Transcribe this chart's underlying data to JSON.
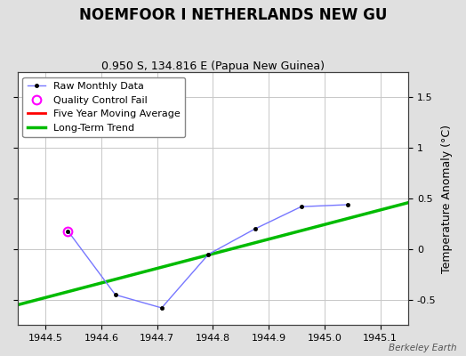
{
  "title": "NOEMFOOR I NETHERLANDS NEW GU",
  "subtitle": "0.950 S, 134.816 E (Papua New Guinea)",
  "ylabel": "Temperature Anomaly (°C)",
  "watermark": "Berkeley Earth",
  "xlim": [
    1944.45,
    1945.15
  ],
  "ylim": [
    -0.75,
    1.75
  ],
  "xticks": [
    1944.5,
    1944.6,
    1944.7,
    1944.8,
    1944.9,
    1945.0,
    1945.1
  ],
  "yticks": [
    -0.5,
    0.0,
    0.5,
    1.0,
    1.5
  ],
  "raw_x": [
    1944.54,
    1944.625,
    1944.708,
    1944.792,
    1944.875,
    1944.958,
    1945.042
  ],
  "raw_y": [
    0.18,
    -0.45,
    -0.58,
    -0.05,
    0.2,
    0.42,
    0.44
  ],
  "qc_fail_x": [
    1944.54
  ],
  "qc_fail_y": [
    0.18
  ],
  "trend_x": [
    1944.45,
    1945.15
  ],
  "trend_y": [
    -0.55,
    0.46
  ],
  "raw_line_color": "#7777ff",
  "raw_marker_color": "#000000",
  "qc_color": "#ff00ff",
  "moving_avg_color": "#ff0000",
  "trend_color": "#00bb00",
  "background_color": "#e0e0e0",
  "plot_bg_color": "#ffffff",
  "grid_color": "#c8c8c8",
  "title_fontsize": 12,
  "subtitle_fontsize": 9,
  "axis_label_fontsize": 9,
  "tick_fontsize": 8,
  "legend_fontsize": 8
}
